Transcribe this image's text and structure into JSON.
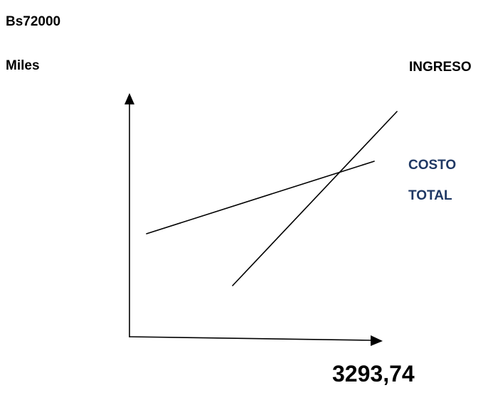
{
  "labels": {
    "amount": "Bs72000",
    "y_axis_unit": "Miles",
    "revenue_line": "INGRESO",
    "cost_line_1": "COSTO",
    "cost_line_2": "TOTAL",
    "break_even_value": "3293,74"
  },
  "colors": {
    "text": "#000000",
    "cost_label": "#1f3864",
    "line": "#000000"
  }
}
